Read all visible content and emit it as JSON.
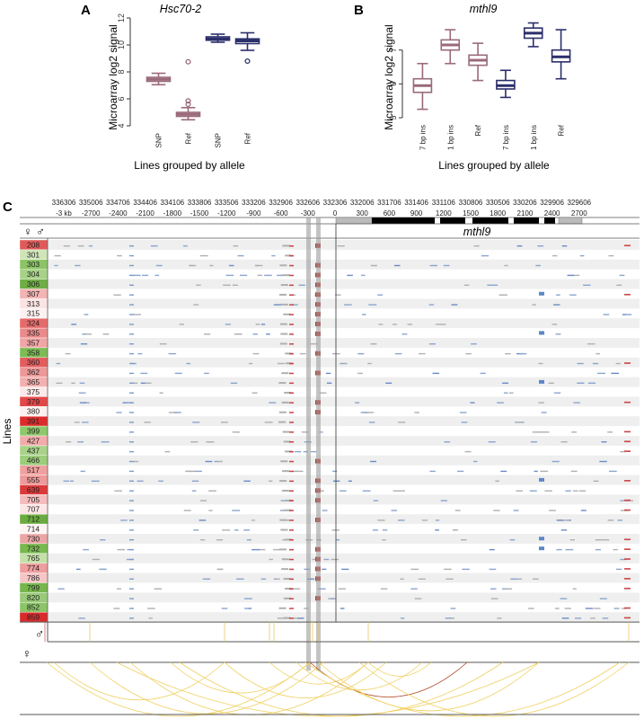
{
  "chart_data": [
    {
      "panel": "A",
      "type": "box",
      "title": "Hsc70-2",
      "ylabel": "Microarray log2 signal",
      "xlabel": "Lines grouped by allele",
      "ylim": [
        4,
        12
      ],
      "yticks": [
        4,
        6,
        8,
        10,
        12
      ],
      "categories": [
        "SNP",
        "Ref",
        "SNP",
        "Ref"
      ],
      "colors": [
        "#9a6a7a",
        "#9a6a7a",
        "#2b2f6a",
        "#2b2f6a"
      ],
      "boxes": [
        {
          "min": 7.05,
          "q1": 7.3,
          "median": 7.45,
          "q3": 7.6,
          "max": 7.9,
          "outliers": []
        },
        {
          "min": 4.45,
          "q1": 4.7,
          "median": 4.85,
          "q3": 5.0,
          "max": 5.35,
          "outliers": [
            5.6,
            5.85,
            8.75
          ]
        },
        {
          "min": 10.2,
          "q1": 10.35,
          "median": 10.45,
          "q3": 10.6,
          "max": 10.8,
          "outliers": []
        },
        {
          "min": 9.6,
          "q1": 10.1,
          "median": 10.3,
          "q3": 10.45,
          "max": 10.9,
          "outliers": [
            8.8
          ]
        }
      ]
    },
    {
      "panel": "B",
      "type": "box",
      "title": "mthl9",
      "ylabel": "Microarray log2 signal",
      "xlabel": "Lines grouped by allele",
      "ylim": [
        5,
        8
      ],
      "yticks": [
        5,
        6,
        7
      ],
      "categories": [
        "7 bp ins",
        "1 bp ins",
        "Ref",
        "7 bp ins",
        "1 bp ins",
        "Ref"
      ],
      "colors": [
        "#9a6a7a",
        "#9a6a7a",
        "#9a6a7a",
        "#2b2f6a",
        "#2b2f6a",
        "#2b2f6a"
      ],
      "boxes": [
        {
          "min": 5.25,
          "q1": 5.75,
          "median": 5.95,
          "q3": 6.15,
          "max": 6.6,
          "outliers": []
        },
        {
          "min": 6.6,
          "q1": 7.0,
          "median": 7.15,
          "q3": 7.3,
          "max": 7.6,
          "outliers": []
        },
        {
          "min": 6.1,
          "q1": 6.55,
          "median": 6.7,
          "q3": 6.85,
          "max": 7.2,
          "outliers": []
        },
        {
          "min": 5.6,
          "q1": 5.85,
          "median": 5.95,
          "q3": 6.1,
          "max": 6.4,
          "outliers": []
        },
        {
          "min": 7.1,
          "q1": 7.35,
          "median": 7.5,
          "q3": 7.65,
          "max": 7.8,
          "outliers": []
        },
        {
          "min": 6.15,
          "q1": 6.65,
          "median": 6.8,
          "q3": 7.0,
          "max": 7.6,
          "outliers": []
        }
      ]
    },
    {
      "panel": "C",
      "type": "genome_track",
      "gene": "mthl9",
      "ylabel": "Lines",
      "coordinates": [
        "336306",
        "335006",
        "334706",
        "334406",
        "334106",
        "333806",
        "333506",
        "333206",
        "332906",
        "332606",
        "332306",
        "332006",
        "331706",
        "331406",
        "331106",
        "330806",
        "330506",
        "330206",
        "329906",
        "329606"
      ],
      "offsets": [
        "-3 kb",
        "-2700",
        "-2400",
        "-2100",
        "-1800",
        "-1500",
        "-1200",
        "-900",
        "-600",
        "-300",
        "0",
        "300",
        "600",
        "900",
        "1200",
        "1500",
        "1800",
        "2100",
        "2400",
        "2700"
      ],
      "lines": [
        "208",
        "301",
        "303",
        "304",
        "306",
        "307",
        "313",
        "315",
        "324",
        "335",
        "357",
        "358",
        "360",
        "362",
        "365",
        "375",
        "379",
        "380",
        "391",
        "399",
        "427",
        "437",
        "466",
        "517",
        "555",
        "639",
        "705",
        "707",
        "712",
        "714",
        "730",
        "732",
        "765",
        "774",
        "786",
        "799",
        "820",
        "852",
        "859"
      ],
      "line_colors": [
        "#e05a5a",
        "#cfe5b8",
        "#8cc465",
        "#a7d287",
        "#6fae45",
        "#f3b4b4",
        "#fbe3e3",
        "#fdf2f2",
        "#e66a6a",
        "#eb8a8a",
        "#f1a5a5",
        "#7dbb55",
        "#e35d5d",
        "#ee9999",
        "#f3b0b0",
        "#fbeaea",
        "#e24848",
        "#fdf0f0",
        "#dd2b2b",
        "#8ec86a",
        "#f2aaaa",
        "#a9d38a",
        "#9ccd7b",
        "#f1a0a0",
        "#ef9a9a",
        "#dc3a3a",
        "#f4bcbc",
        "#fde6e6",
        "#6aab3f",
        "#fef4f4",
        "#eba5a5",
        "#78b84f",
        "#c4e0a9",
        "#ef9d9d",
        "#f6c6c6",
        "#77b64d",
        "#99ca78",
        "#8cc468",
        "#d92b2b"
      ],
      "male_symbol": "♂",
      "female_symbol": "♀"
    }
  ]
}
